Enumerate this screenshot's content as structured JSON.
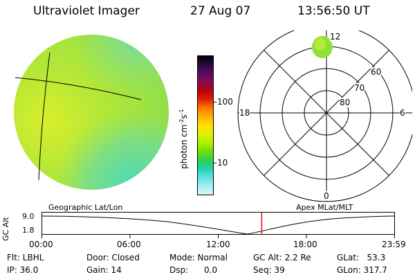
{
  "header": {
    "instrument": "Ultraviolet Imager",
    "date": "27 Aug 07",
    "time": "13:56:50 UT"
  },
  "colorbar": {
    "unit_label": "photon cm",
    "unit_exp1": "-2",
    "unit_mid": "s",
    "unit_exp2": "-1",
    "ticks": [
      "100",
      "10"
    ],
    "colors": [
      "#000000",
      "#2b0a3d",
      "#5b0a66",
      "#8a0a4e",
      "#b8000c",
      "#e0200c",
      "#ff7a00",
      "#ffb000",
      "#ffe000",
      "#e0f000",
      "#b0f000",
      "#70e000",
      "#30d050",
      "#20d0b0",
      "#60e0e0",
      "#a0f0f0",
      "#d8f8f8"
    ]
  },
  "polar_plot": {
    "mlt_labels": {
      "top": "12",
      "left": "18",
      "right": "6",
      "bottom": "0"
    },
    "lat_labels": [
      "60",
      "70",
      "80"
    ]
  },
  "timeline": {
    "left_label": "Geographic Lat/Lon",
    "right_label": "Apex MLat/MLT",
    "axis_title": "GC Alt",
    "y_ticks": [
      "9.0",
      "1.8"
    ],
    "x_ticks": [
      "00:00",
      "06:00",
      "12:00",
      "18:00",
      "23:59"
    ],
    "current_fraction": 0.6233
  },
  "info": {
    "flt": "Flt: LBHL",
    "ip": "IP: 36.0",
    "door": "Door: Closed",
    "gain": "Gain: 14",
    "mode": "Mode: Normal",
    "dsp": "Dsp:      0.0",
    "gcalt": "GC Alt: 2.2 Re",
    "seq": "Seq: 39",
    "glat": "GLat:   53.3",
    "glon": "GLon: 317.7"
  },
  "colors": {
    "disk_base": "#a6e63a",
    "disk_bright": "#d6ef2a",
    "disk_low": "#5cd8b8",
    "blob": "#8ee03a",
    "marker": "#ff0000"
  }
}
